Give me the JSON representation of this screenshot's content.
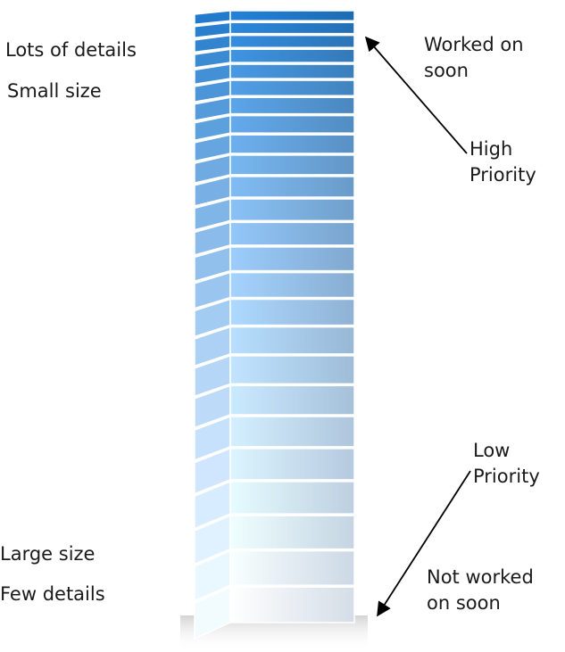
{
  "left_labels": {
    "top_detail": "Lots of details",
    "top_size": "Small size",
    "bottom_size": "Large size",
    "bottom_detail": "Few details"
  },
  "right_labels": {
    "top_status": [
      "Worked on",
      "soon"
    ],
    "top_priority": [
      "High",
      "Priority"
    ],
    "bottom_priority": [
      "Low",
      "Priority"
    ],
    "bottom_status": [
      "Not worked",
      "on soon"
    ]
  },
  "stack": {
    "slab_count": 25,
    "top_color": "#1f74c2",
    "bottom_color": "#e6f0fb",
    "arrow_color": "#000000"
  }
}
